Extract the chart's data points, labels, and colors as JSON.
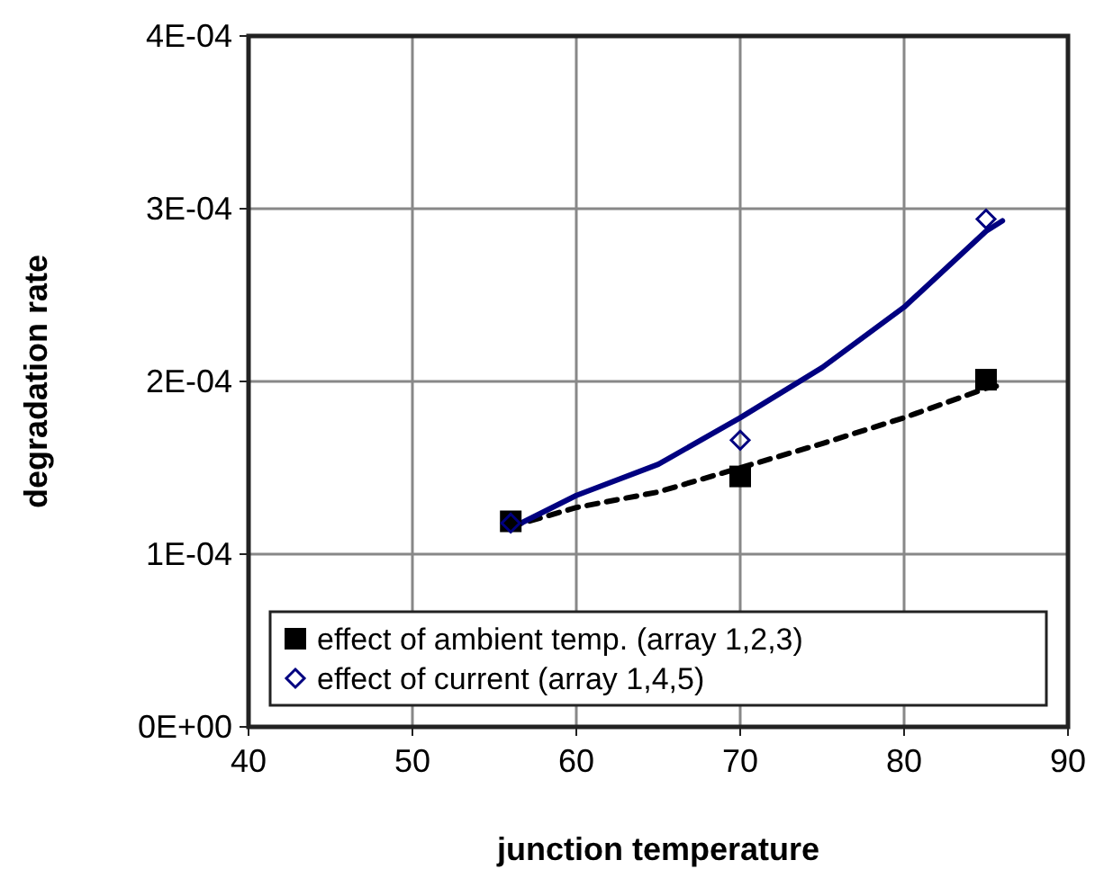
{
  "chart_data": {
    "type": "scatter",
    "xlabel": "junction temperature",
    "ylabel": "degradation rate",
    "xlim": [
      40,
      90
    ],
    "xticks": [
      40,
      50,
      60,
      70,
      80,
      90
    ],
    "ylim": [
      0,
      0.0004
    ],
    "yticks": [
      {
        "value": 0,
        "label": "0E+00"
      },
      {
        "value": 0.0001,
        "label": "1E-04"
      },
      {
        "value": 0.0002,
        "label": "2E-04"
      },
      {
        "value": 0.0003,
        "label": "3E-04"
      },
      {
        "value": 0.0004,
        "label": "4E-04"
      }
    ],
    "grid": true,
    "legend": "bottom",
    "series": [
      {
        "type": "line",
        "color": "#000000",
        "line_style": "dashed",
        "marker": "none",
        "x": [
          56,
          60,
          65,
          70,
          75,
          80,
          85,
          86
        ],
        "values": [
          0.000116,
          0.000127,
          0.000136,
          0.00015,
          0.000164,
          0.000179,
          0.000196,
          0.000198
        ]
      },
      {
        "type": "line",
        "color": "#000080",
        "line_style": "solid",
        "marker": "none",
        "x": [
          56,
          60,
          65,
          70,
          75,
          80,
          85,
          86
        ],
        "values": [
          0.000115,
          0.000134,
          0.000152,
          0.000179,
          0.000208,
          0.000243,
          0.000287,
          0.000293
        ]
      },
      {
        "type": "scatter",
        "name": "effect of ambient temp. (array 1,2,3)",
        "color": "#000000",
        "marker": "square",
        "x": [
          56,
          70,
          85
        ],
        "values": [
          0.000119,
          0.000145,
          0.000201
        ]
      },
      {
        "type": "scatter",
        "name": "effect of current (array 1,4,5)",
        "color": "#000080",
        "marker": "diamond",
        "x": [
          56,
          70,
          85
        ],
        "values": [
          0.000118,
          0.000166,
          0.000294
        ]
      }
    ]
  }
}
